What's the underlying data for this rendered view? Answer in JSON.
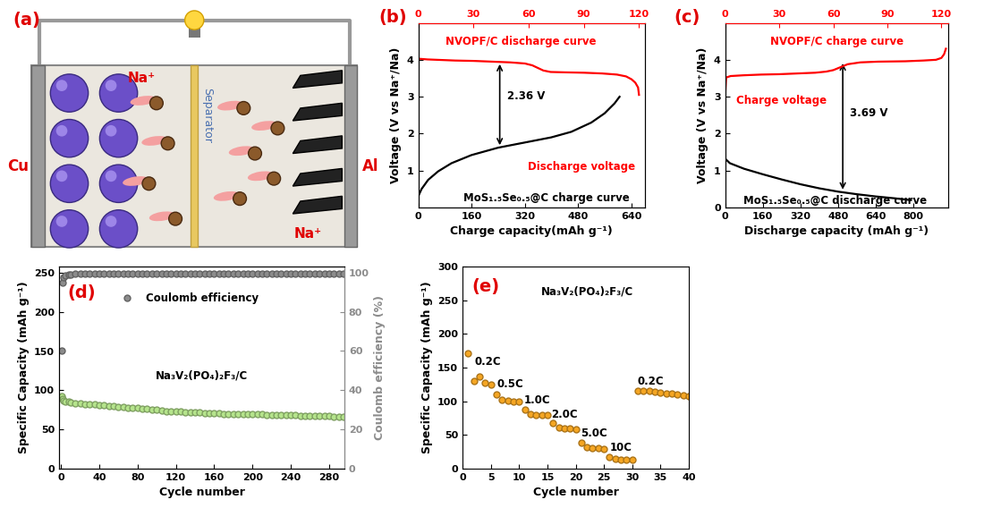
{
  "diagram": {
    "panel_label": "(a)",
    "left_collector": "Cu",
    "right_collector": "Al",
    "separator": "Separator",
    "ion_labels": [
      "Na⁺",
      "Na⁺"
    ]
  },
  "chart_data": [
    {
      "type": "line",
      "panel_label": "(b)",
      "x_label": "Charge capacity(mAh g⁻¹)",
      "y_label": "Voltage (V vs Na⁺/Na)",
      "xlim": [
        0,
        680
      ],
      "xticks": [
        0,
        160,
        320,
        480,
        640
      ],
      "x2lim": [
        0,
        123
      ],
      "x2ticks": [
        0,
        30,
        60,
        90,
        120
      ],
      "ylim": [
        0,
        5
      ],
      "yticks": [
        1,
        2,
        3,
        4
      ],
      "series": [
        {
          "color": "#ff0000",
          "axis": "x2",
          "x": [
            0,
            5,
            10,
            20,
            30,
            40,
            50,
            58,
            62,
            65,
            68,
            72,
            80,
            90,
            100,
            108,
            113,
            116,
            118,
            119.5,
            120
          ],
          "values": [
            4.03,
            4.01,
            4.0,
            3.98,
            3.97,
            3.95,
            3.93,
            3.9,
            3.85,
            3.78,
            3.71,
            3.67,
            3.66,
            3.65,
            3.63,
            3.6,
            3.55,
            3.47,
            3.38,
            3.25,
            3.05
          ]
        },
        {
          "color": "#000000",
          "x": [
            0,
            10,
            30,
            60,
            100,
            160,
            240,
            320,
            400,
            460,
            520,
            560,
            590,
            605
          ],
          "values": [
            0.3,
            0.5,
            0.75,
            0.98,
            1.2,
            1.42,
            1.62,
            1.76,
            1.9,
            2.05,
            2.3,
            2.55,
            2.82,
            3.0
          ]
        }
      ],
      "annotations": [
        {
          "text": "NVOPF/C discharge curve",
          "color": "#ff0000"
        },
        {
          "text": "Discharge voltage",
          "color": "#ff0000"
        },
        {
          "text": "MoS₁.₅Se₀.₅@C charge curve",
          "color": "#000000"
        }
      ],
      "arrows": [
        {
          "text": "2.36 V",
          "x": 245,
          "y": [
            1.62,
            3.95
          ]
        }
      ]
    },
    {
      "type": "line",
      "panel_label": "(c)",
      "x_label": "Discharge capacity (mAh g⁻¹)",
      "y_label": "Voltage (V vs Na⁺/Na)",
      "xlim": [
        0,
        950
      ],
      "xticks": [
        0,
        160,
        320,
        480,
        640,
        800
      ],
      "x2lim": [
        0,
        124
      ],
      "x2ticks": [
        0,
        30,
        60,
        90,
        120
      ],
      "ylim": [
        0,
        5
      ],
      "yticks": [
        0,
        1,
        2,
        3,
        4
      ],
      "series": [
        {
          "color": "#ff0000",
          "axis": "x2",
          "x": [
            0,
            0.5,
            3,
            10,
            20,
            30,
            40,
            50,
            56,
            60,
            64,
            68,
            75,
            85,
            100,
            110,
            117,
            120,
            121.5,
            122.5
          ],
          "values": [
            3.05,
            3.52,
            3.56,
            3.58,
            3.6,
            3.61,
            3.63,
            3.65,
            3.68,
            3.72,
            3.8,
            3.88,
            3.93,
            3.95,
            3.96,
            3.98,
            4.0,
            4.05,
            4.15,
            4.3
          ]
        },
        {
          "color": "#000000",
          "x": [
            0,
            20,
            80,
            160,
            240,
            320,
            400,
            480,
            560,
            640,
            720,
            790
          ],
          "values": [
            1.32,
            1.2,
            1.05,
            0.9,
            0.76,
            0.63,
            0.52,
            0.43,
            0.36,
            0.3,
            0.25,
            0.2
          ]
        }
      ],
      "annotations": [
        {
          "text": "NVOPF/C charge curve",
          "color": "#ff0000"
        },
        {
          "text": "Charge voltage",
          "color": "#ff0000"
        },
        {
          "text": "MoS₁.₅Se₀.₅@C discharge curve",
          "color": "#000000"
        }
      ],
      "arrows": [
        {
          "text": "3.69 V",
          "x": 500,
          "y": [
            0.42,
            3.97
          ]
        }
      ]
    },
    {
      "type": "scatter",
      "panel_label": "(d)",
      "x_label": "Cycle number",
      "y_label": "Specific Capacity (mAh g⁻¹)",
      "y2_label": "Coulomb efficiency (%)",
      "xlim": [
        -2,
        296
      ],
      "xticks": [
        0,
        40,
        80,
        120,
        160,
        200,
        240,
        280
      ],
      "ylim": [
        0,
        258
      ],
      "yticks": [
        0,
        50,
        100,
        150,
        200,
        250
      ],
      "y2lim": [
        0,
        103
      ],
      "y2ticks": [
        0,
        20,
        40,
        60,
        80,
        100
      ],
      "legend": "upper center",
      "series": [
        {
          "color": "#b5e48c",
          "marker": "o",
          "line_style": "solid",
          "x": [
            1,
            2,
            3,
            5,
            8,
            10,
            15,
            20,
            25,
            30,
            35,
            40,
            45,
            50,
            55,
            60,
            65,
            70,
            75,
            80,
            85,
            90,
            95,
            100,
            105,
            110,
            115,
            120,
            125,
            130,
            135,
            140,
            145,
            150,
            155,
            160,
            165,
            170,
            175,
            180,
            185,
            190,
            195,
            200,
            205,
            210,
            215,
            220,
            225,
            230,
            235,
            240,
            245,
            250,
            255,
            260,
            265,
            270,
            275,
            280,
            285,
            290,
            295
          ],
          "values": [
            92,
            89,
            87,
            86,
            85,
            84,
            83.5,
            83,
            82.5,
            82,
            81.5,
            81,
            80.5,
            80,
            79.5,
            79,
            78.5,
            78,
            77.5,
            77,
            76.5,
            76,
            75.5,
            75,
            74,
            73,
            72.5,
            72.5,
            72.5,
            72,
            72,
            71.5,
            71.5,
            71,
            71,
            70.5,
            70.5,
            70,
            70,
            70,
            69.5,
            69.5,
            69.5,
            69,
            69,
            69,
            68.5,
            68.5,
            68.5,
            68,
            68,
            68,
            68,
            67.5,
            67.5,
            67.5,
            67,
            67,
            67,
            67,
            66.5,
            66.5,
            66.5
          ]
        },
        {
          "name": "Coulomb efficiency",
          "color": "#8c8c8c",
          "marker": "o",
          "axis": "y2",
          "x": [
            1,
            2,
            3,
            5,
            8,
            10,
            15,
            20,
            25,
            30,
            35,
            40,
            45,
            50,
            55,
            60,
            65,
            70,
            75,
            80,
            85,
            90,
            95,
            100,
            105,
            110,
            115,
            120,
            125,
            130,
            135,
            140,
            145,
            150,
            155,
            160,
            165,
            170,
            175,
            180,
            185,
            190,
            195,
            200,
            205,
            210,
            215,
            220,
            225,
            230,
            235,
            240,
            245,
            250,
            255,
            260,
            265,
            270,
            275,
            280,
            285,
            290,
            295
          ],
          "values": [
            60,
            95,
            97.5,
            98.5,
            99,
            99.2,
            99.4,
            99.5,
            99.5,
            99.6,
            99.5,
            99.5,
            99.6,
            99.5,
            99.5,
            99.6,
            99.4,
            99.5,
            99.5,
            99.6,
            99.5,
            99.5,
            99.6,
            99.5,
            99.5,
            99.6,
            99.4,
            99.5,
            99.5,
            99.6,
            99.5,
            99.5,
            99.6,
            99.5,
            99.5,
            99.6,
            99.4,
            99.5,
            99.5,
            99.6,
            99.5,
            99.5,
            99.6,
            99.5,
            99.5,
            99.6,
            99.4,
            99.5,
            99.5,
            99.6,
            99.5,
            99.5,
            99.6,
            99.5,
            99.5,
            99.6,
            99.5,
            99.6,
            99.5,
            99.5,
            99.6,
            99.5,
            99.5
          ]
        }
      ],
      "annotations": [
        {
          "text": "Na₃V₂(PO₄)₂F₃/C",
          "color": "#000000"
        }
      ]
    },
    {
      "type": "scatter",
      "panel_label": "(e)",
      "x_label": "Cycle number",
      "y_label": "Specific Capacity (mAh g⁻¹)",
      "xlim": [
        0,
        40
      ],
      "xticks": [
        0,
        5,
        10,
        15,
        20,
        25,
        30,
        35,
        40
      ],
      "ylim": [
        0,
        300
      ],
      "yticks": [
        0,
        50,
        100,
        150,
        200,
        250,
        300
      ],
      "series": [
        {
          "color": "#f5a623",
          "marker": "o",
          "x": [
            1,
            2,
            3,
            4,
            5,
            6,
            7,
            8,
            9,
            10,
            11,
            12,
            13,
            14,
            15,
            16,
            17,
            18,
            19,
            20,
            21,
            22,
            23,
            24,
            25,
            26,
            27,
            28,
            29,
            30,
            31,
            32,
            33,
            34,
            35,
            36,
            37,
            38,
            39,
            40
          ],
          "values": [
            171,
            130,
            136,
            127,
            124,
            110,
            102,
            101,
            100,
            100,
            88,
            81,
            80,
            80,
            79,
            67,
            61,
            60,
            59,
            58,
            38,
            31,
            30,
            30,
            29,
            17,
            14,
            13,
            13,
            13,
            115,
            116,
            115,
            114,
            113,
            112,
            111,
            110,
            109,
            108
          ]
        }
      ],
      "annotations": [
        {
          "text": "Na₃V₂(PO₄)₂F₃/C",
          "color": "#000000"
        },
        {
          "text": "0.2C",
          "color": "#000000"
        },
        {
          "text": "0.5C",
          "color": "#000000"
        },
        {
          "text": "1.0C",
          "color": "#000000"
        },
        {
          "text": "2.0C",
          "color": "#000000"
        },
        {
          "text": "5.0C",
          "color": "#000000"
        },
        {
          "text": "10C",
          "color": "#000000"
        },
        {
          "text": "0.2C",
          "color": "#000000"
        }
      ]
    }
  ]
}
